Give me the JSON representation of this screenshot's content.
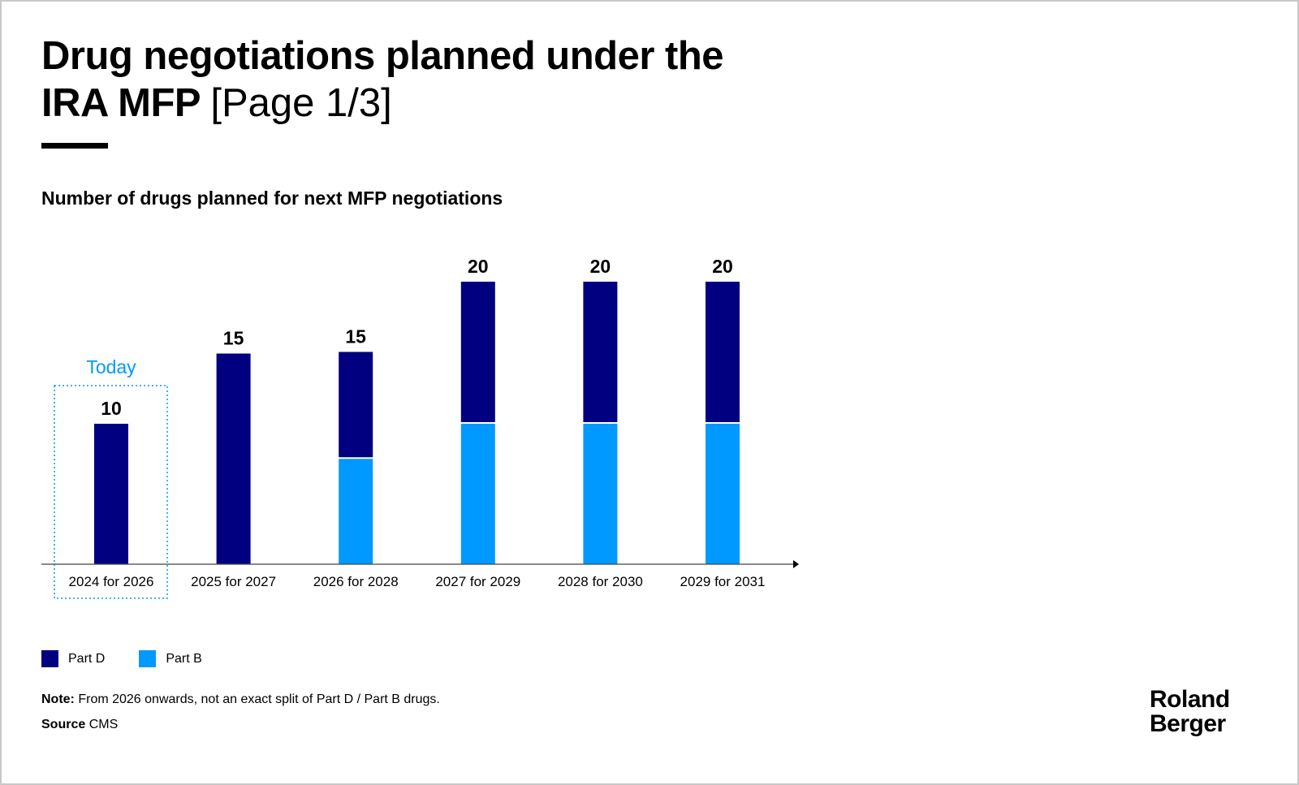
{
  "header": {
    "title_bold": "Drug negotiations planned under the IRA MFP",
    "title_page": "[Page 1/3]"
  },
  "subtitle": "Number of drugs planned for next MFP negotiations",
  "chart_data": {
    "type": "bar",
    "stacked": true,
    "categories": [
      "2024 for 2026",
      "2025 for 2027",
      "2026 for 2028",
      "2027 for 2029",
      "2028 for 2030",
      "2029 for 2031"
    ],
    "series": [
      {
        "name": "Part B",
        "color": "#0099FF",
        "values": [
          0,
          0,
          7.5,
          10,
          10,
          10
        ]
      },
      {
        "name": "Part D",
        "color": "#000080",
        "values": [
          10,
          15,
          7.5,
          10,
          10,
          10
        ]
      }
    ],
    "totals": [
      10,
      15,
      15,
      20,
      20,
      20
    ],
    "ylim": [
      0,
      20
    ],
    "grid": false,
    "highlight": {
      "category": "2024 for 2026",
      "label": "Today",
      "color": "#0099FF"
    },
    "legend_position": "bottom-left"
  },
  "legend": [
    {
      "label": "Part D",
      "color": "#000080"
    },
    {
      "label": "Part B",
      "color": "#0099FF"
    }
  ],
  "footer": {
    "note_label": "Note:",
    "note_text": " From 2026 onwards, not an exact split of Part D / Part B drugs.",
    "source_label": "Source",
    "source_text": " CMS"
  },
  "logo": {
    "line1": "Roland",
    "line2": "Berger"
  }
}
